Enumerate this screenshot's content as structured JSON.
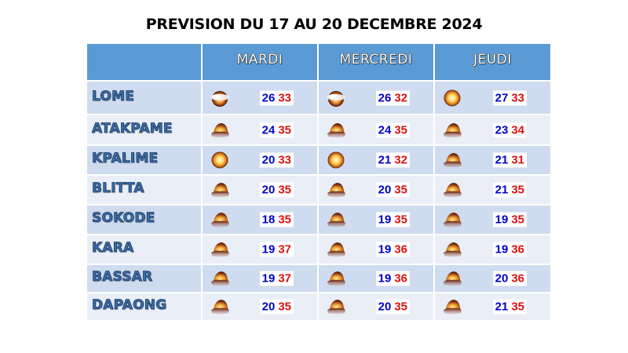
{
  "title": "PREVISION DU 17 AU 20 DECEMBRE 2024",
  "table": {
    "corner_label": "",
    "days": [
      "MARDI",
      "MERCREDI",
      "JEUDI"
    ],
    "colors": {
      "header_bg": "#5b9bd5",
      "row_odd_bg": "#cfdbee",
      "row_even_bg": "#e9eef7",
      "city_text": "#3b6ca8",
      "tmin_text": "#0000cc",
      "tmax_text": "#dd1111"
    },
    "rows": [
      {
        "city": "LOME",
        "forecasts": [
          {
            "icon": "hazy-sun-icon",
            "tmin": "26",
            "tmax": "33"
          },
          {
            "icon": "hazy-sun-icon",
            "tmin": "26",
            "tmax": "32"
          },
          {
            "icon": "sun-icon",
            "tmin": "27",
            "tmax": "33"
          }
        ]
      },
      {
        "city": "ATAKPAME",
        "forecasts": [
          {
            "icon": "dusty-haze-icon",
            "tmin": "24",
            "tmax": "35"
          },
          {
            "icon": "dusty-haze-icon",
            "tmin": "24",
            "tmax": "35"
          },
          {
            "icon": "dusty-haze-icon",
            "tmin": "23",
            "tmax": "34"
          }
        ]
      },
      {
        "city": "KPALIME",
        "forecasts": [
          {
            "icon": "sun-icon",
            "tmin": "20",
            "tmax": "33"
          },
          {
            "icon": "sun-icon",
            "tmin": "21",
            "tmax": "32"
          },
          {
            "icon": "dusty-haze-icon",
            "tmin": "21",
            "tmax": "31"
          }
        ]
      },
      {
        "city": "BLITTA",
        "forecasts": [
          {
            "icon": "dusty-haze-icon",
            "tmin": "20",
            "tmax": "35"
          },
          {
            "icon": "dusty-haze-icon",
            "tmin": "20",
            "tmax": "35"
          },
          {
            "icon": "dusty-haze-icon",
            "tmin": "21",
            "tmax": "35"
          }
        ]
      },
      {
        "city": "SOKODE",
        "forecasts": [
          {
            "icon": "dusty-haze-icon",
            "tmin": "18",
            "tmax": "35"
          },
          {
            "icon": "dusty-haze-icon",
            "tmin": "19",
            "tmax": "35"
          },
          {
            "icon": "dusty-haze-icon",
            "tmin": "19",
            "tmax": "35"
          }
        ]
      },
      {
        "city": "KARA",
        "forecasts": [
          {
            "icon": "dusty-haze-icon",
            "tmin": "19",
            "tmax": "37"
          },
          {
            "icon": "dusty-haze-icon",
            "tmin": "19",
            "tmax": "36"
          },
          {
            "icon": "dusty-haze-icon",
            "tmin": "19",
            "tmax": "36"
          }
        ]
      },
      {
        "city": "BASSAR",
        "forecasts": [
          {
            "icon": "dusty-haze-icon",
            "tmin": "19",
            "tmax": "37"
          },
          {
            "icon": "dusty-haze-icon",
            "tmin": "19",
            "tmax": "36"
          },
          {
            "icon": "dusty-haze-icon",
            "tmin": "20",
            "tmax": "36"
          }
        ]
      },
      {
        "city": "DAPAONG",
        "forecasts": [
          {
            "icon": "dusty-haze-icon",
            "tmin": "20",
            "tmax": "35"
          },
          {
            "icon": "dusty-haze-icon",
            "tmin": "20",
            "tmax": "35"
          },
          {
            "icon": "dusty-haze-icon",
            "tmin": "21",
            "tmax": "35"
          }
        ]
      }
    ]
  }
}
